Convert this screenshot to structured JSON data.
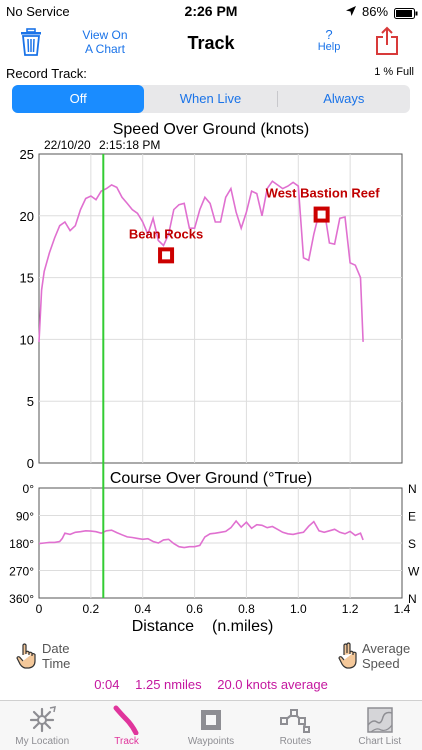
{
  "status_bar": {
    "carrier": "No Service",
    "time": "2:26 PM",
    "battery": "86%"
  },
  "nav": {
    "view_chart_line1": "View On",
    "view_chart_line2": "A Chart",
    "title": "Track",
    "help_symbol": "?",
    "help_label": "Help"
  },
  "record": {
    "label": "Record Track:",
    "full": "1 % Full",
    "options": [
      "Off",
      "When Live",
      "Always"
    ],
    "selected": "Off"
  },
  "speed_chart_title": "Speed Over Ground (knots)",
  "course_chart_title": "Course Over Ground (°True)",
  "cursor_date": "22/10/20",
  "cursor_time": "2:15:18 PM",
  "x_axis_label": "Distance",
  "x_axis_unit": "(n.miles)",
  "chart_data": [
    {
      "type": "line",
      "title": "Speed Over Ground (knots)",
      "ylim": [
        0,
        25
      ],
      "yticks": [
        "0",
        "5",
        "10",
        "15",
        "20",
        "25"
      ],
      "xlim": [
        0,
        1.4
      ],
      "grid": true,
      "series": [
        {
          "color": "#e070d0",
          "x": [
            0,
            0.01,
            0.02,
            0.04,
            0.06,
            0.08,
            0.1,
            0.12,
            0.14,
            0.16,
            0.18,
            0.2,
            0.22,
            0.24,
            0.26,
            0.28,
            0.3,
            0.32,
            0.34,
            0.36,
            0.38,
            0.4,
            0.42,
            0.44,
            0.46,
            0.48,
            0.5,
            0.52,
            0.54,
            0.56,
            0.58,
            0.6,
            0.62,
            0.64,
            0.66,
            0.68,
            0.7,
            0.72,
            0.74,
            0.76,
            0.78,
            0.8,
            0.82,
            0.84,
            0.86,
            0.88,
            0.9,
            0.92,
            0.94,
            0.96,
            0.98,
            1.0,
            1.02,
            1.04,
            1.06,
            1.08,
            1.1,
            1.12,
            1.14,
            1.16,
            1.18,
            1.2,
            1.22,
            1.24,
            1.25
          ],
          "y": [
            9.8,
            14,
            15.5,
            17,
            18.2,
            19.2,
            19.5,
            18.8,
            19.2,
            20.5,
            21.4,
            21.6,
            21.3,
            22.0,
            22.2,
            22.5,
            22.3,
            21.5,
            21.0,
            20.5,
            20.2,
            19.5,
            18.5,
            19.8,
            18.0,
            17.6,
            18.5,
            20.5,
            20.9,
            21.0,
            19.0,
            19.0,
            20.5,
            21.5,
            21.0,
            19.5,
            19.5,
            21.5,
            22.2,
            20.3,
            19.0,
            20.3,
            22.0,
            21.8,
            20.0,
            22.2,
            22.8,
            22.5,
            22.2,
            22.4,
            22.7,
            22.4,
            16.6,
            16.4,
            18.5,
            20.2,
            20.5,
            17.8,
            17.7,
            19.8,
            19.9,
            16.2,
            16.0,
            15.0,
            9.8
          ]
        }
      ],
      "annotations": [
        {
          "label": "Bean Rocks",
          "x": 0.49,
          "y": 16.8
        },
        {
          "label": "West Bastion Reef",
          "x": 1.09,
          "y": 20.1
        }
      ],
      "cursor_x": 0.248
    },
    {
      "type": "line",
      "title": "Course Over Ground (°True)",
      "ylim": [
        0,
        360
      ],
      "y_reversed": true,
      "yticks_left": [
        "0°",
        "90°",
        "180°",
        "270°",
        "360°"
      ],
      "yticks_right": [
        "N",
        "E",
        "S",
        "W",
        "N"
      ],
      "xlim": [
        0,
        1.4
      ],
      "xticks": [
        "0",
        "0.2",
        "0.4",
        "0.6",
        "0.8",
        "1.0",
        "1.2",
        "1.4"
      ],
      "grid": true,
      "series": [
        {
          "color": "#e070d0",
          "x": [
            0,
            0.02,
            0.04,
            0.06,
            0.08,
            0.09,
            0.1,
            0.12,
            0.14,
            0.16,
            0.18,
            0.2,
            0.22,
            0.24,
            0.26,
            0.28,
            0.3,
            0.32,
            0.34,
            0.36,
            0.38,
            0.4,
            0.42,
            0.44,
            0.46,
            0.48,
            0.5,
            0.52,
            0.54,
            0.56,
            0.58,
            0.6,
            0.62,
            0.64,
            0.66,
            0.68,
            0.7,
            0.72,
            0.74,
            0.76,
            0.78,
            0.8,
            0.82,
            0.84,
            0.86,
            0.88,
            0.9,
            0.92,
            0.94,
            0.96,
            0.98,
            1.0,
            1.02,
            1.04,
            1.06,
            1.08,
            1.1,
            1.12,
            1.14,
            1.16,
            1.18,
            1.2,
            1.22,
            1.24,
            1.25
          ],
          "y": [
            182,
            180,
            178,
            178,
            175,
            165,
            148,
            152,
            145,
            143,
            140,
            141,
            143,
            148,
            140,
            138,
            146,
            153,
            160,
            162,
            165,
            168,
            166,
            175,
            180,
            170,
            168,
            182,
            192,
            195,
            192,
            192,
            188,
            160,
            150,
            148,
            145,
            142,
            130,
            108,
            128,
            112,
            132,
            120,
            122,
            130,
            126,
            135,
            145,
            150,
            152,
            148,
            145,
            125,
            110,
            140,
            145,
            140,
            135,
            145,
            150,
            142,
            155,
            148,
            170
          ]
        }
      ],
      "cursor_x": 0.248
    }
  ],
  "footer": {
    "left_line1": "Date",
    "left_line2": "Time",
    "right_line1": "Average",
    "right_line2": "Speed"
  },
  "summary": {
    "duration": "0:04",
    "distance": "1.25 nmiles",
    "speed": "20.0 knots average"
  },
  "tabs": [
    {
      "label": "My Location",
      "icon": "compass-icon"
    },
    {
      "label": "Track",
      "icon": "track-icon"
    },
    {
      "label": "Waypoints",
      "icon": "waypoint-icon"
    },
    {
      "label": "Routes",
      "icon": "routes-icon"
    },
    {
      "label": "Chart List",
      "icon": "chart-list-icon"
    }
  ],
  "colors": {
    "accent": "#1a8cff",
    "track": "#e070d0",
    "active_tab": "#e0359c",
    "cursor": "#33cc33",
    "marker": "#cc0000"
  }
}
